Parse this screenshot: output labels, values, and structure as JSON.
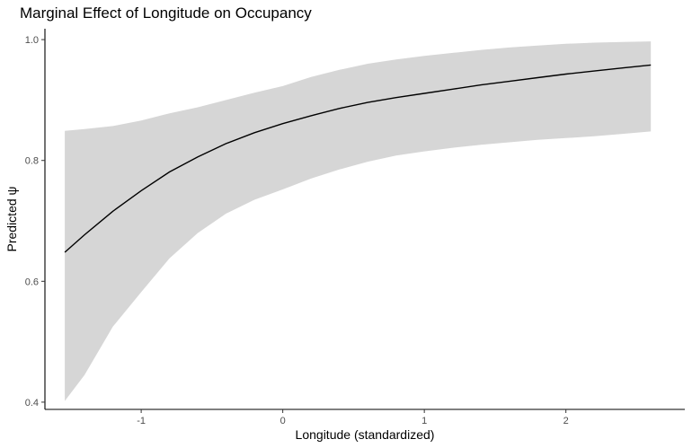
{
  "chart_data": {
    "type": "line",
    "title": "Marginal Effect of Longitude on Occupancy",
    "xlabel": "Longitude (standardized)",
    "ylabel": "Predicted ψ",
    "xlim": [
      -1.68,
      2.84
    ],
    "ylim": [
      0.388,
      1.018
    ],
    "x_ticks": [
      -1,
      0,
      1,
      2
    ],
    "x_tick_labels": [
      "-1",
      "0",
      "1",
      "2"
    ],
    "y_ticks": [
      0.4,
      0.6,
      0.8,
      1.0
    ],
    "y_tick_labels": [
      "0.4",
      "0.6",
      "0.8",
      "1.0"
    ],
    "grid": false,
    "colors": {
      "line": "#000000",
      "ribbon": "#d6d6d6",
      "axis": "#000000",
      "tick_text": "#4d4d4d"
    },
    "series": [
      {
        "x": [
          -1.54,
          -1.4,
          -1.2,
          -1.0,
          -0.8,
          -0.6,
          -0.4,
          -0.2,
          0.0,
          0.2,
          0.4,
          0.6,
          0.8,
          1.0,
          1.2,
          1.4,
          1.6,
          1.8,
          2.0,
          2.2,
          2.4,
          2.6
        ],
        "y": [
          0.648,
          0.677,
          0.716,
          0.75,
          0.781,
          0.806,
          0.828,
          0.846,
          0.861,
          0.874,
          0.886,
          0.896,
          0.904,
          0.911,
          0.918,
          0.925,
          0.931,
          0.937,
          0.943,
          0.948,
          0.953,
          0.958
        ],
        "lower": [
          0.402,
          0.445,
          0.525,
          0.582,
          0.638,
          0.68,
          0.712,
          0.735,
          0.752,
          0.77,
          0.785,
          0.798,
          0.808,
          0.815,
          0.821,
          0.826,
          0.83,
          0.834,
          0.837,
          0.84,
          0.844,
          0.848
        ],
        "upper": [
          0.849,
          0.852,
          0.857,
          0.866,
          0.878,
          0.888,
          0.9,
          0.912,
          0.923,
          0.938,
          0.95,
          0.96,
          0.967,
          0.973,
          0.978,
          0.983,
          0.987,
          0.99,
          0.993,
          0.995,
          0.996,
          0.997
        ]
      }
    ]
  }
}
